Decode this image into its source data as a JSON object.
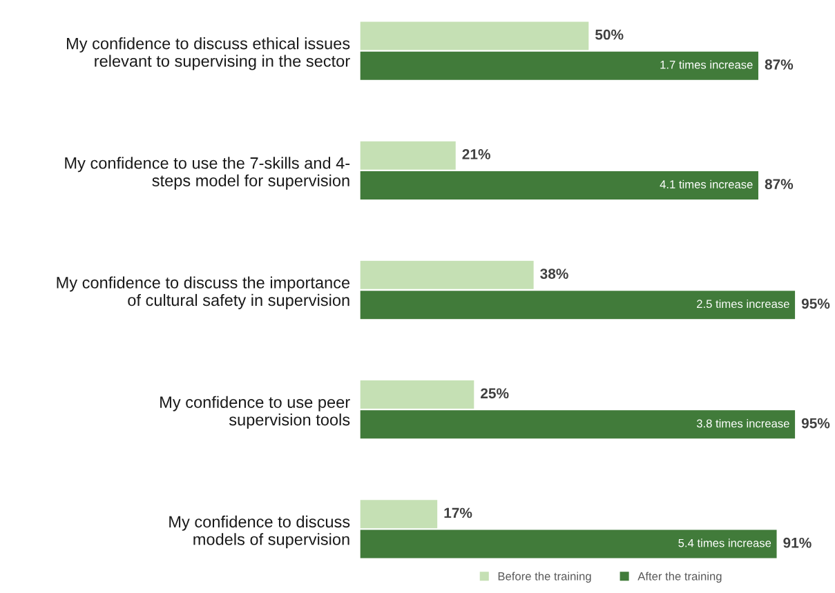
{
  "chart_data": {
    "type": "bar",
    "orientation": "horizontal",
    "categories": [
      "My confidence to discuss ethical issues\nrelevant to supervising in the sector",
      "My confidence to use the 7-skills and 4-\nsteps model for supervision",
      "My confidence to discuss the importance\nof cultural safety in supervision",
      "My confidence to use peer\nsupervision tools",
      "My confidence to discuss\nmodels of supervision"
    ],
    "series": [
      {
        "name": "Before the training",
        "color": "#c5e0b4",
        "values": [
          50,
          21,
          38,
          25,
          17
        ],
        "value_labels": [
          "50%",
          "21%",
          "38%",
          "25%",
          "17%"
        ]
      },
      {
        "name": "After the training",
        "color": "#417b3a",
        "values": [
          87,
          87,
          95,
          95,
          91
        ],
        "value_labels": [
          "87%",
          "87%",
          "95%",
          "95%",
          "91%"
        ]
      }
    ],
    "annotations": [
      {
        "text": "1.7 times increase",
        "x": 87,
        "y": "My confidence to discuss ethical issues\nrelevant to supervising in the sector"
      },
      {
        "text": "4.1 times increase",
        "x": 87,
        "y": "My confidence to use the 7-skills and 4-\nsteps model for supervision"
      },
      {
        "text": "2.5 times increase",
        "x": 95,
        "y": "My confidence to discuss the importance\nof cultural safety in supervision"
      },
      {
        "text": "3.8 times increase",
        "x": 95,
        "y": "My confidence to use peer\nsupervision tools"
      },
      {
        "text": "5.4 times increase",
        "x": 91,
        "y": "My confidence to discuss\nmodels of supervision"
      }
    ],
    "tick_labels": "y",
    "grid": false,
    "legend": "bottom"
  }
}
